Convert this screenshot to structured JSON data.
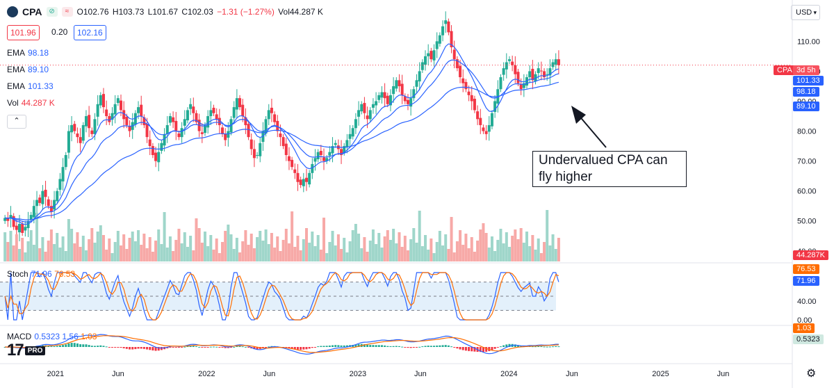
{
  "header": {
    "symbol": "CPA",
    "flag_green": "⊘",
    "flag_red": "≈",
    "open": "O102.76",
    "high": "H103.73",
    "low": "L101.67",
    "close": "C102.03",
    "change": "−1.31 (−1.27%)",
    "volume": "Vol44.287 K"
  },
  "quote": {
    "bid": "101.96",
    "spread": "0.20",
    "ask": "102.16"
  },
  "legend": {
    "ema1_label": "EMA",
    "ema1_value": "98.18",
    "ema2_label": "EMA",
    "ema2_value": "89.10",
    "ema3_label": "EMA",
    "ema3_value": "101.33",
    "vol_label": "Vol",
    "vol_value": "44.287 K",
    "stoch_label": "Stoch",
    "stoch_k": "71.96",
    "stoch_d": "76.53",
    "macd_label": "MACD",
    "macd_v1": "0.5323",
    "macd_v2": "1.56",
    "macd_v3": "1.03"
  },
  "toolbar": {
    "collapse": "⌃",
    "currency": "USD",
    "chevron": "▾"
  },
  "price_labels": {
    "symbol_tag": "CPA",
    "countdown": "3d 5h",
    "ema3": "101.33",
    "ema1": "98.18",
    "ema2": "89.10",
    "volume": "44.287K",
    "stoch_d": "76.53",
    "stoch_k": "71.96",
    "macd_signal": "1.03",
    "macd_line": "0.5323"
  },
  "annotation": {
    "line1": "Undervalued CPA can",
    "line2": "fly higher"
  },
  "branding": {
    "logo": "17",
    "pro": "PRO"
  },
  "colors": {
    "up": "#22ab94",
    "down": "#f23645",
    "ema": "#2962ff",
    "stoch_d": "#ff6d00",
    "vol_up": "#9fd6ca",
    "vol_down": "#f7a9a7"
  },
  "chart_data": {
    "type": "candlestick",
    "title": "CPA",
    "price_axis": {
      "ticks": [
        40,
        50,
        60,
        70,
        80,
        90,
        100,
        110
      ],
      "tick_labels": [
        "40.00",
        "50.00",
        "60.00",
        "70.00",
        "80.00",
        "90.00",
        "100.00",
        "110.00"
      ],
      "range": [
        36,
        121
      ]
    },
    "stoch_axis": {
      "ticks": [
        0,
        40
      ],
      "tick_labels": [
        "0.00",
        "40.00"
      ],
      "band": [
        20,
        80
      ],
      "midline": 50
    },
    "x_axis": {
      "range": [
        "2020-08-20",
        "2025-11-15"
      ],
      "tick_dates": [
        "2021-01-01",
        "2021-06-01",
        "2022-01-01",
        "2022-06-01",
        "2023-01-01",
        "2023-06-01",
        "2024-01-01",
        "2024-06-01",
        "2025-01-01",
        "2025-06-01"
      ],
      "tick_labels": [
        "2021",
        "Jun",
        "2022",
        "Jun",
        "2023",
        "Jun",
        "2024",
        "Jun",
        "2025",
        "Jun"
      ]
    },
    "price_series": {
      "start_date": "2020-09-01",
      "step_days": 7,
      "close": [
        51,
        50,
        52,
        48,
        47,
        49,
        46,
        48,
        50,
        52,
        55,
        57,
        56,
        60,
        58,
        55,
        53,
        57,
        60,
        64,
        68,
        72,
        80,
        82,
        80,
        78,
        76,
        82,
        85,
        81,
        79,
        84,
        89,
        92,
        88,
        85,
        83,
        86,
        89,
        91,
        87,
        84,
        82,
        80,
        83,
        86,
        88,
        85,
        82,
        78,
        75,
        72,
        70,
        73,
        76,
        79,
        82,
        85,
        83,
        80,
        78,
        81,
        84,
        87,
        89,
        86,
        83,
        80,
        79,
        82,
        85,
        87,
        86,
        84,
        82,
        79,
        77,
        80,
        84,
        88,
        91,
        88,
        85,
        82,
        78,
        74,
        71,
        72,
        76,
        80,
        84,
        87,
        86,
        83,
        80,
        78,
        75,
        72,
        70,
        68,
        66,
        63,
        62,
        64,
        63,
        66,
        69,
        71,
        73,
        72,
        70,
        71,
        73,
        75,
        76,
        74,
        72,
        75,
        77,
        79,
        81,
        84,
        87,
        89,
        86,
        84,
        87,
        89,
        90,
        92,
        93,
        91,
        89,
        92,
        95,
        97,
        95,
        92,
        90,
        89,
        91,
        94,
        97,
        100,
        103,
        105,
        106,
        104,
        107,
        110,
        112,
        115,
        117,
        113,
        108,
        104,
        101,
        98,
        96,
        94,
        92,
        90,
        87,
        84,
        82,
        80,
        79,
        82,
        86,
        90,
        94,
        98,
        101,
        103,
        104,
        102,
        99,
        96,
        94,
        96,
        98,
        100,
        97,
        99,
        101,
        100,
        98,
        99,
        101,
        103,
        104,
        102
      ]
    },
    "ema_series": [
      {
        "name": "EMA",
        "value": 98.18
      },
      {
        "name": "EMA",
        "value": 89.1
      },
      {
        "name": "EMA",
        "value": 101.33
      }
    ],
    "last": {
      "close": 102.03,
      "volume_k": 44.287,
      "stoch_k": 71.96,
      "stoch_d": 76.53,
      "macd": 0.5323,
      "signal": 1.03
    }
  }
}
